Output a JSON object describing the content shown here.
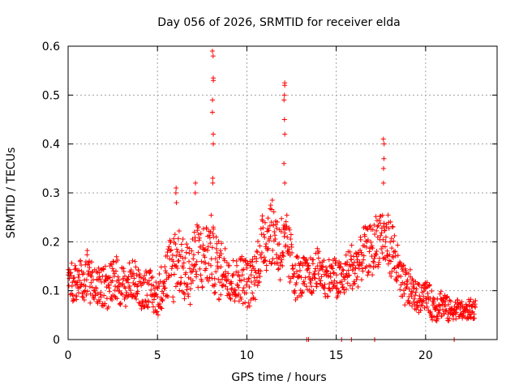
{
  "chart_data": {
    "type": "scatter",
    "title": "Day 056 of 2026, SRMTID for receiver elda",
    "xlabel": "GPS time / hours",
    "ylabel": "SRMTID / TECUs",
    "xlim": [
      0,
      24
    ],
    "ylim": [
      0,
      0.6
    ],
    "x_ticks": [
      0,
      5,
      10,
      15,
      20
    ],
    "x_tick_labels": [
      "0",
      "5",
      "10",
      "15",
      "20"
    ],
    "y_ticks": [
      0,
      0.1,
      0.2,
      0.3,
      0.4,
      0.5,
      0.6
    ],
    "y_tick_labels": [
      "0",
      "0.1",
      "0.2",
      "0.3",
      "0.4",
      "0.5",
      "0.6"
    ],
    "grid": true,
    "marker": "plus",
    "color": "#ff0000",
    "sampling": {
      "x_start": 0.0,
      "x_end": 22.8,
      "step_hours": 0.0167
    },
    "envelope": {
      "x": [
        0.0,
        0.5,
        1.0,
        1.5,
        2.0,
        2.5,
        3.0,
        3.5,
        4.0,
        4.5,
        5.0,
        5.5,
        6.0,
        6.5,
        7.0,
        7.5,
        8.0,
        8.5,
        9.0,
        9.5,
        10.0,
        10.5,
        11.0,
        11.5,
        12.0,
        12.5,
        13.0,
        13.5,
        14.0,
        14.5,
        15.0,
        15.5,
        16.0,
        16.5,
        17.0,
        17.5,
        18.0,
        18.5,
        19.0,
        19.5,
        20.0,
        20.5,
        21.0,
        21.5,
        22.0,
        22.5,
        22.8
      ],
      "mean": [
        0.11,
        0.12,
        0.13,
        0.11,
        0.1,
        0.12,
        0.11,
        0.12,
        0.11,
        0.1,
        0.09,
        0.13,
        0.17,
        0.14,
        0.15,
        0.18,
        0.17,
        0.15,
        0.13,
        0.12,
        0.12,
        0.13,
        0.22,
        0.21,
        0.19,
        0.16,
        0.12,
        0.13,
        0.14,
        0.13,
        0.12,
        0.13,
        0.15,
        0.17,
        0.19,
        0.21,
        0.2,
        0.13,
        0.1,
        0.09,
        0.09,
        0.07,
        0.07,
        0.06,
        0.06,
        0.06,
        0.06
      ],
      "spread": [
        0.04,
        0.04,
        0.05,
        0.04,
        0.04,
        0.05,
        0.04,
        0.04,
        0.04,
        0.04,
        0.04,
        0.06,
        0.08,
        0.06,
        0.07,
        0.07,
        0.07,
        0.06,
        0.05,
        0.05,
        0.05,
        0.05,
        0.07,
        0.07,
        0.07,
        0.06,
        0.04,
        0.04,
        0.04,
        0.04,
        0.04,
        0.04,
        0.05,
        0.05,
        0.05,
        0.06,
        0.06,
        0.05,
        0.04,
        0.03,
        0.03,
        0.03,
        0.03,
        0.02,
        0.02,
        0.02,
        0.02
      ]
    },
    "spikes": [
      {
        "x": 8.1,
        "values": [
          0.59,
          0.58,
          0.535,
          0.53,
          0.49,
          0.465,
          0.42,
          0.4,
          0.33,
          0.32
        ]
      },
      {
        "x": 12.1,
        "values": [
          0.525,
          0.52,
          0.5,
          0.49,
          0.45,
          0.42,
          0.36,
          0.32
        ]
      },
      {
        "x": 17.65,
        "values": [
          0.41,
          0.4,
          0.37,
          0.35,
          0.32
        ]
      },
      {
        "x": 6.05,
        "values": [
          0.31,
          0.3,
          0.28
        ]
      },
      {
        "x": 7.1,
        "values": [
          0.32,
          0.3
        ]
      }
    ],
    "zero_points_x": [
      13.35,
      13.45,
      15.3,
      15.85,
      17.15,
      21.6
    ]
  }
}
